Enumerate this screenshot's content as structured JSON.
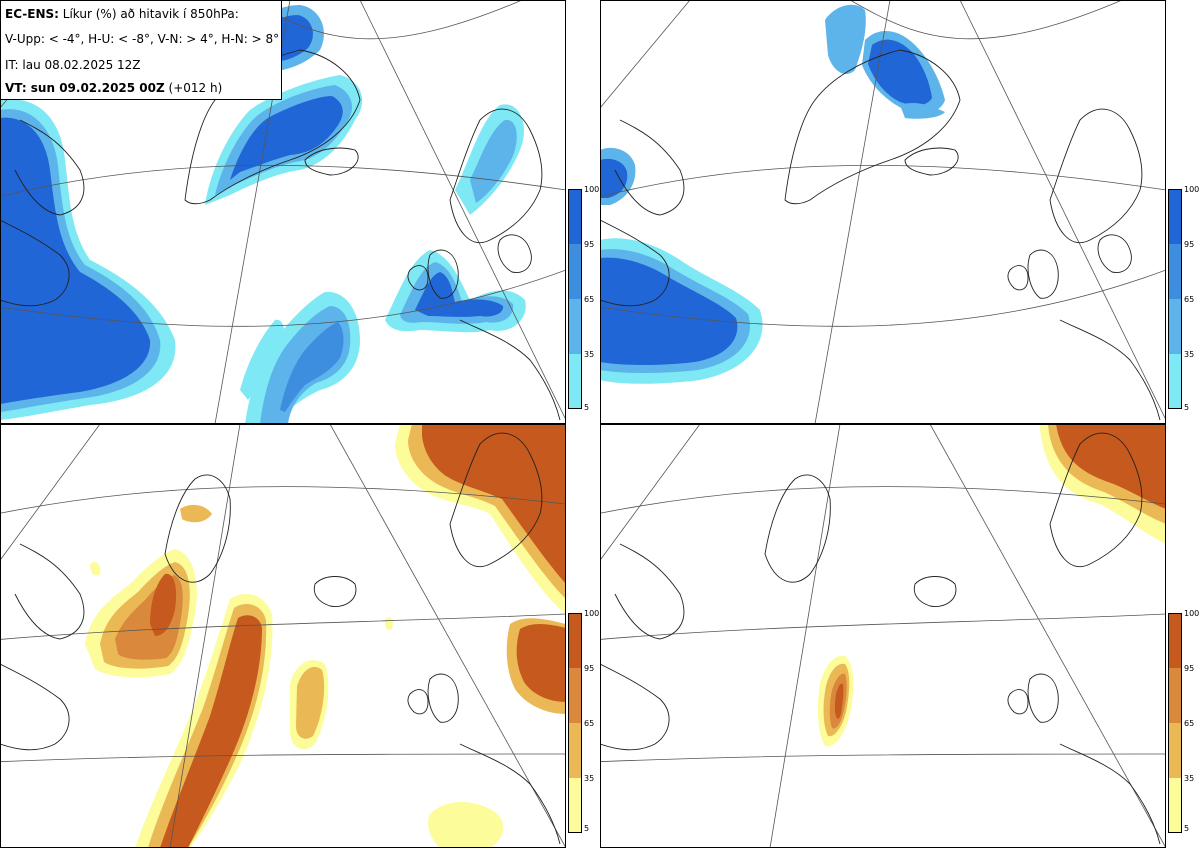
{
  "header": {
    "model": "EC-ENS:",
    "description": "Líkur (%) að hitavik í 850hPa:",
    "categories": "V-Upp: < -4°, H-U: < -8°, V-N: > 4°, H-N: > 8°",
    "init_time": "IT: lau 08.02.2025 12Z",
    "valid_label": "VT: sun 09.02.2025 00Z",
    "lead": "(+012 h)"
  },
  "legends": {
    "ticks": [
      "100",
      "95",
      "65",
      "35",
      "5"
    ],
    "cold_colors": [
      "#2166d6",
      "#3e8ee0",
      "#5cb4ea",
      "#7ee8f4",
      "#b0fbfb"
    ],
    "warm_colors": [
      "#c65a1e",
      "#d9883c",
      "#eab955",
      "#f6ea75",
      "#fcfc9a"
    ]
  },
  "panels": [
    {
      "id": "top-left",
      "label": "V-Upp",
      "scheme": "cold"
    },
    {
      "id": "top-right",
      "label": "H-U",
      "scheme": "cold"
    },
    {
      "id": "bottom-left",
      "label": "V-N",
      "scheme": "warm"
    },
    {
      "id": "bottom-right",
      "label": "H-N",
      "scheme": "warm"
    }
  ]
}
